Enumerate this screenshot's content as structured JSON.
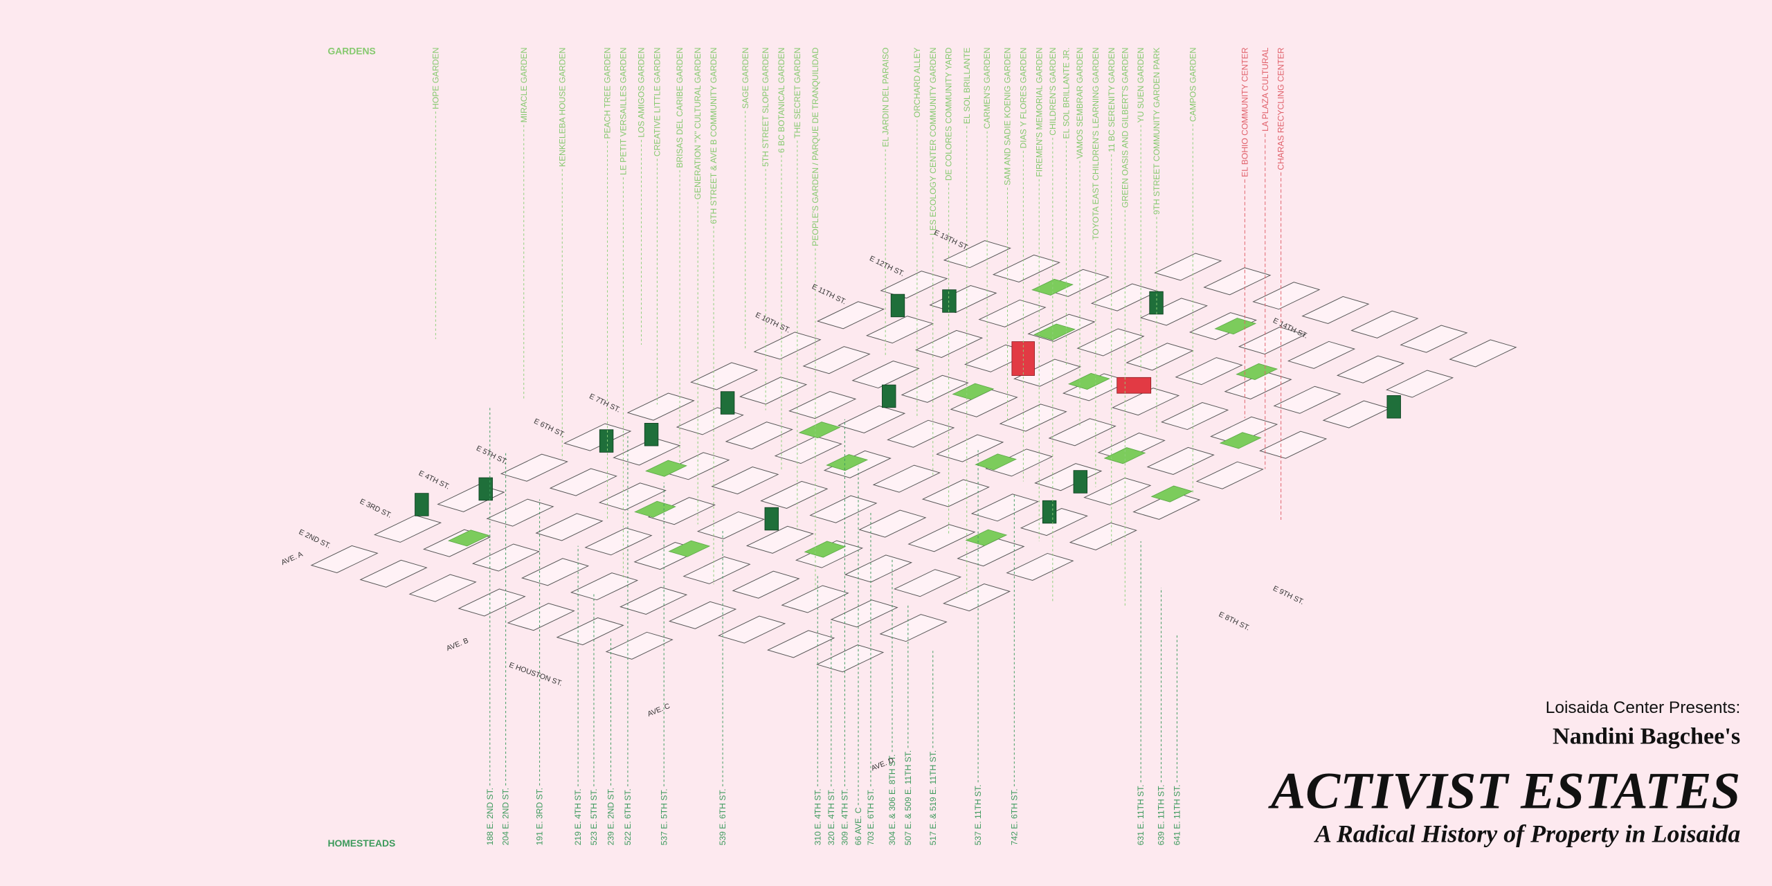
{
  "gardens": {
    "label": "GARDENS",
    "items": [
      "HOPE GARDEN",
      "MIRACLE GARDEN",
      "KENKELEBA HOUSE GARDEN",
      "PEACH TREE GARDEN",
      "LE PETIT VERSAILLES GARDEN",
      "LOS AMIGOS GARDEN",
      "CREATIVE LITTLE GARDEN",
      "BRISAS DEL CARIBE GARDEN",
      "GENERATION \"X\" CULTURAL GARDEN",
      "6TH STREET & AVE B COMMUNITY GARDEN",
      "SAGE GARDEN",
      "5TH STREET SLOPE GARDEN",
      "6 BC BOTANICAL GARDEN",
      "THE SECRET GARDEN",
      "PEOPLE'S GARDEN / PARQUE DE TRANQUILIDAD",
      "EL JARDIN DEL PARAISO",
      "ORCHARD ALLEY",
      "LES ECOLOGY CENTER COMMUNITY GARDEN",
      "DE COLORES COMMUNITY YARD",
      "EL SOL BRILLANTE",
      "CARMEN'S GARDEN",
      "SAM AND SADIE KOENIG GARDEN",
      "DIAS Y FLORES GARDEN",
      "FIREMEN'S MEMORIAL GARDEN",
      "CHILDREN'S GARDEN",
      "EL SOL BRILLANTE JR.",
      "VAMOS SEMBRAR GARDEN",
      "TOYOTA EAST CHILDREN'S LEARNING GARDEN",
      "11 BC SERENITY GARDEN",
      "GREEN OASIS AND GILBERT'S GARDEN",
      "YU SUEN GARDEN",
      "9TH STREET COMMUNITY GARDEN PARK",
      "CAMPOS GARDEN"
    ]
  },
  "community_centers": [
    "EL BOHIO COMMUNITY CENTER",
    "LA PLAZA CULTURAL",
    "CHARAS RECYCLING CENTER"
  ],
  "homesteads": {
    "label": "HOMESTEADS",
    "items": [
      "188 E. 2ND ST.",
      "204 E. 2ND ST.",
      "191 E. 3RD ST.",
      "219 E. 4TH ST.",
      "523 E. 5TH ST.",
      "239 E. 2ND ST.",
      "522 E. 6TH ST.",
      "537 E. 5TH ST.",
      "539 E. 6TH ST.",
      "310 E. 4TH ST.",
      "320 E. 4TH ST.",
      "309 E. 4TH ST.",
      "66 AVE. C",
      "703 E. 6TH ST.",
      "304 E. & 306 E. 8TH ST.",
      "507 E. & 509 E. 11TH ST.",
      "517 E. & 519 E. 11TH ST.",
      "537 E. 11TH ST.",
      "742 E. 6TH ST.",
      "631 E. 11TH ST.",
      "639 E. 11TH ST.",
      "641 E. 11TH ST."
    ]
  },
  "streets": [
    "AVE. A",
    "E 2ND ST.",
    "E 3RD ST.",
    "E 4TH ST.",
    "E 5TH ST.",
    "E 6TH ST.",
    "E 7TH ST.",
    "E 10TH ST.",
    "E 11TH ST.",
    "E 12TH ST.",
    "E 13TH ST.",
    "E 14TH ST.",
    "E 9TH ST.",
    "E 8TH ST.",
    "AVE. B",
    "E HOUSTON ST.",
    "AVE. C",
    "AVE. D"
  ],
  "title_block": {
    "presenter": "Loisaida Center Presents:",
    "author": "Nandini Bagchee's",
    "title": "ACTIVIST ESTATES",
    "subtitle": "A Radical History of Property in Loisaida"
  }
}
